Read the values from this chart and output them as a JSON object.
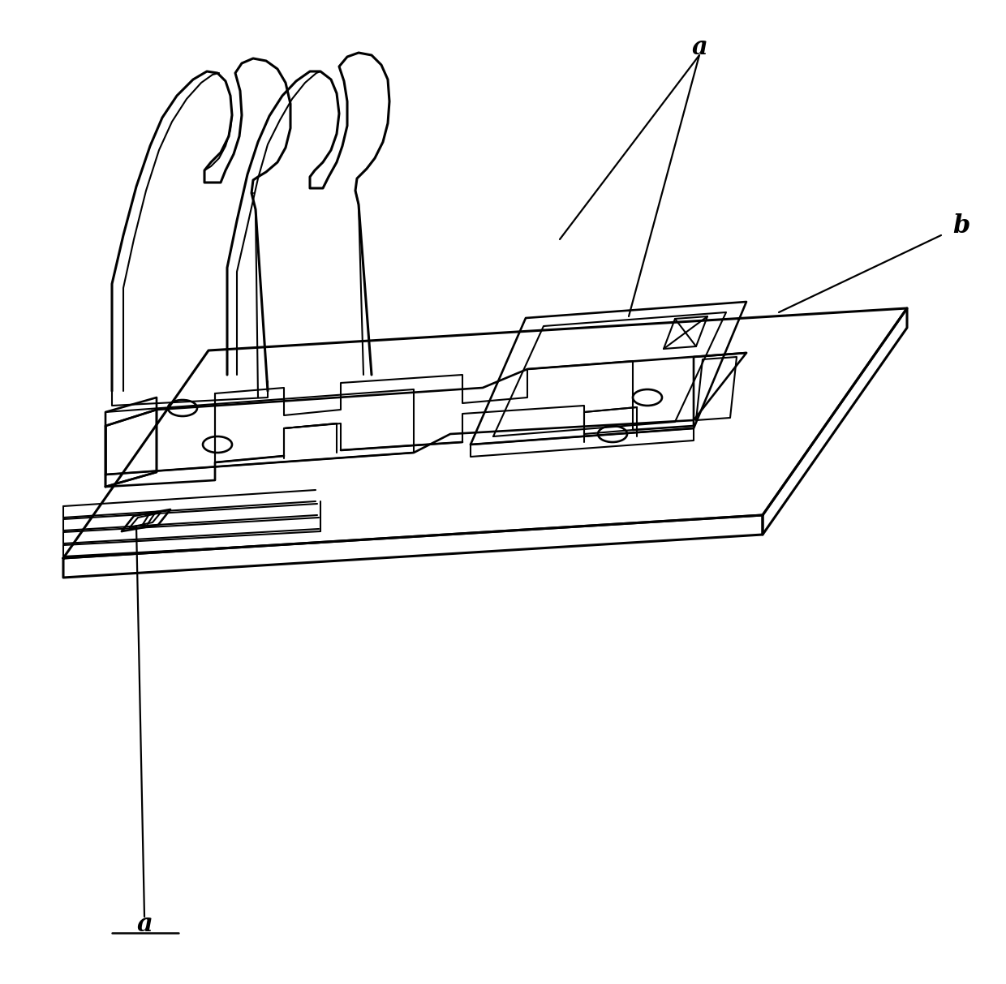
{
  "background_color": "#ffffff",
  "line_color": "#000000",
  "lw_thick": 2.2,
  "lw_med": 1.9,
  "lw_thin": 1.5,
  "label_a_top": {
    "ix": 862,
    "iy": 58,
    "text": "a",
    "fontsize": 22
  },
  "label_b": {
    "ix": 1185,
    "iy": 278,
    "text": "b",
    "fontsize": 22
  },
  "label_a_bottom": {
    "ix": 178,
    "iy": 1140,
    "text": "a",
    "fontsize": 22
  }
}
